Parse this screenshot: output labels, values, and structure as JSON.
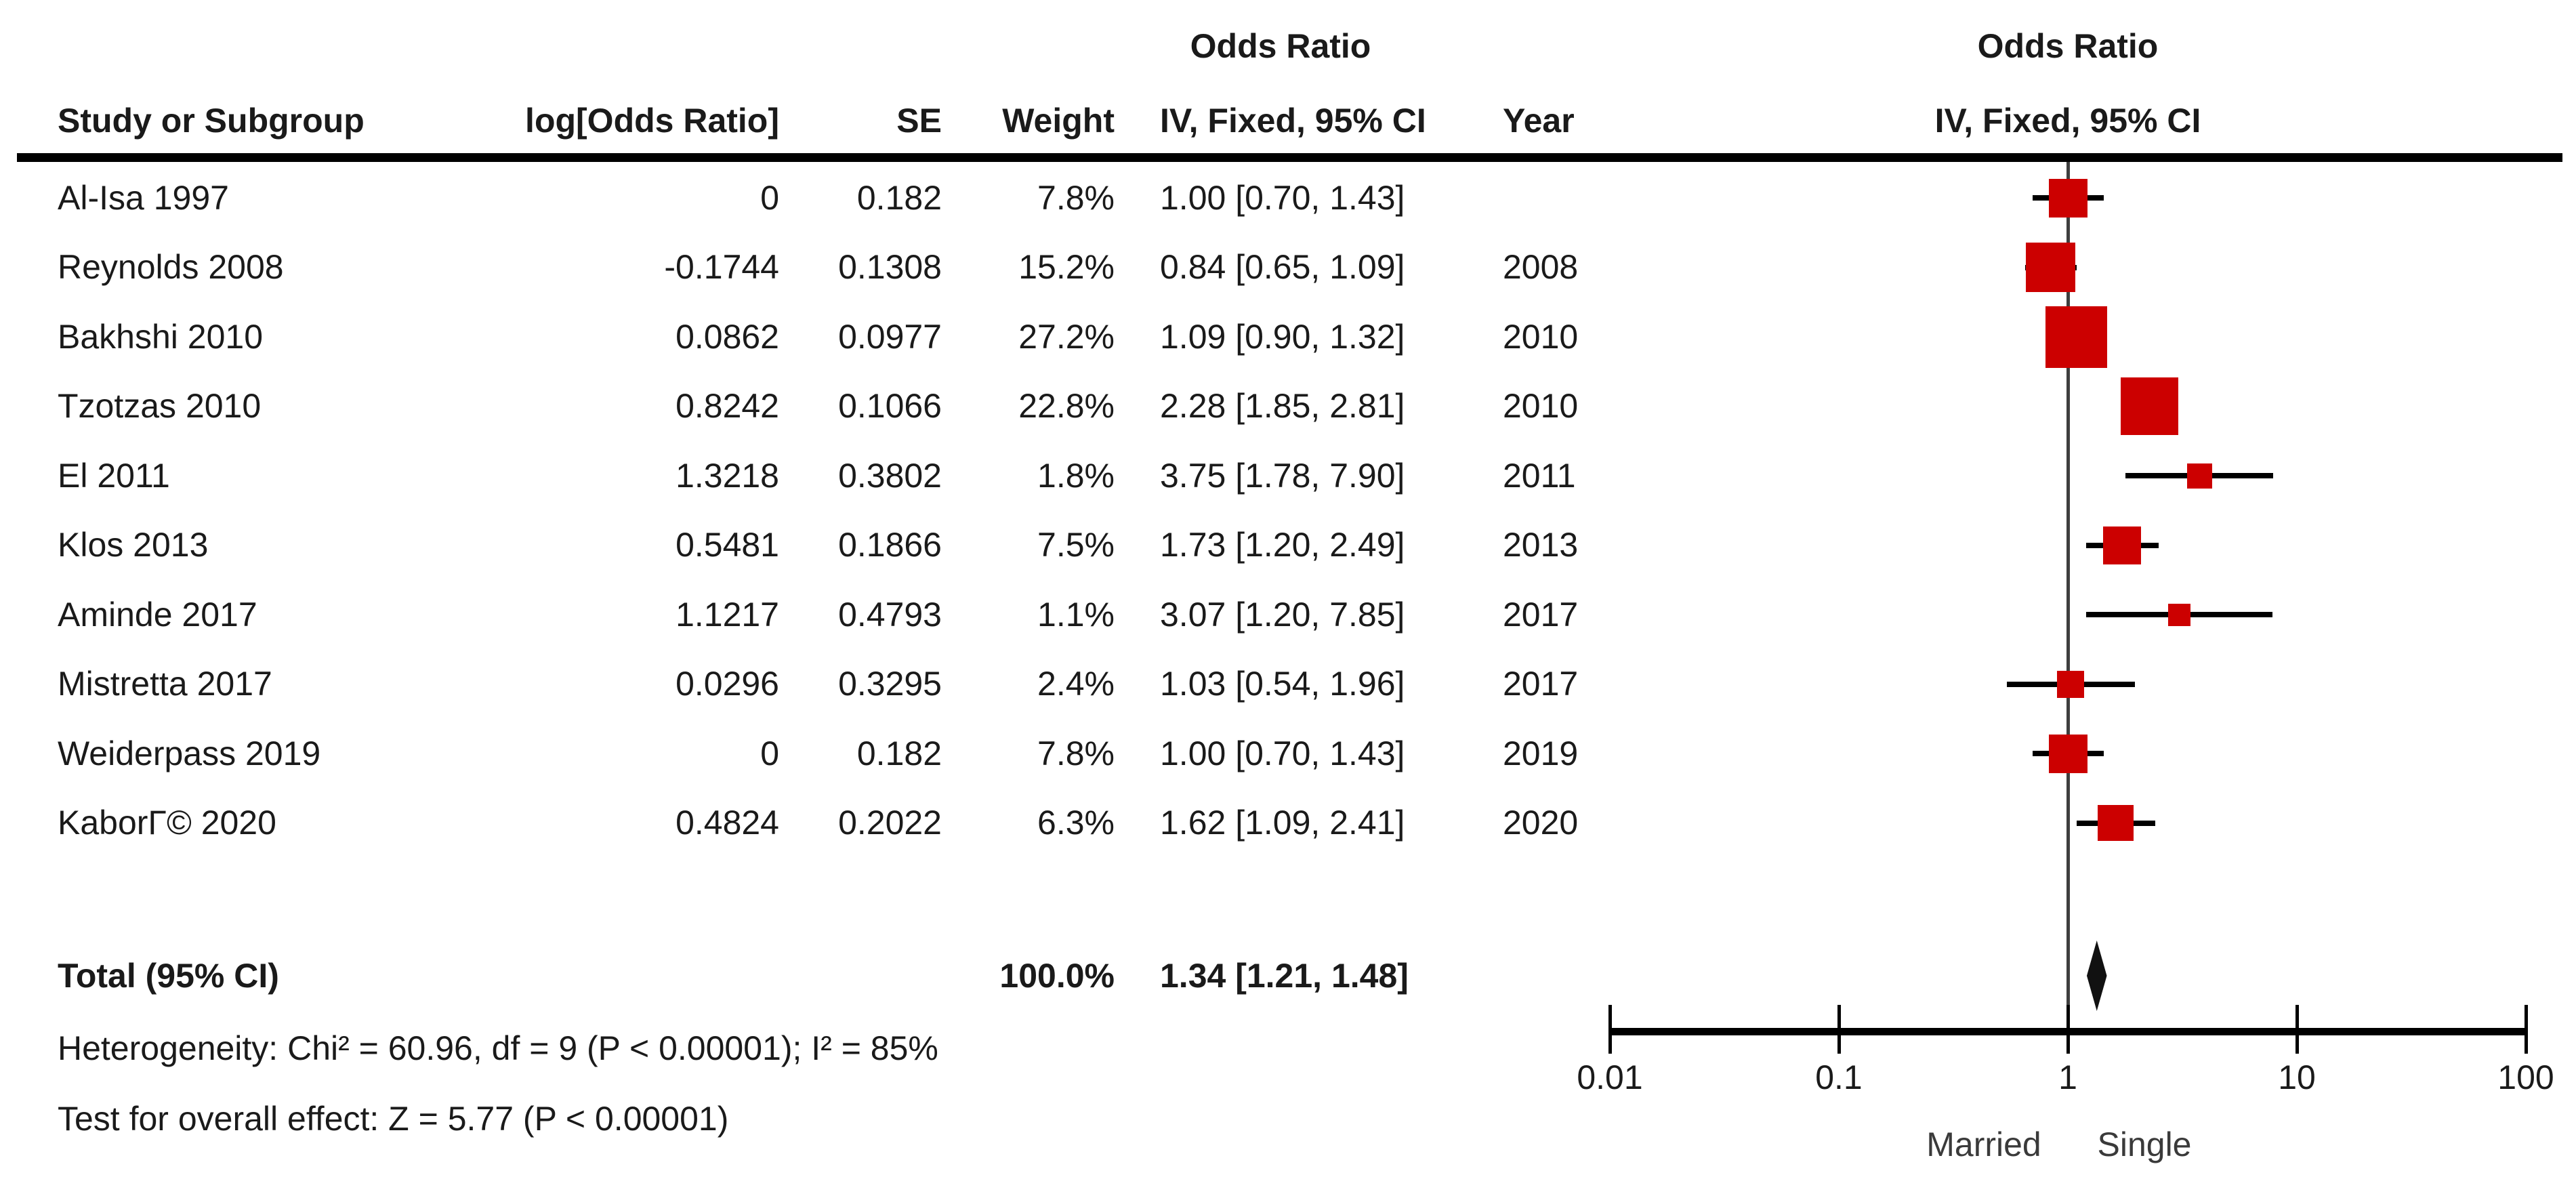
{
  "table": {
    "or_header": "Odds Ratio",
    "headers": {
      "study": "Study or Subgroup",
      "log_or": "log[Odds Ratio]",
      "se": "SE",
      "weight": "Weight",
      "ci": "IV, Fixed, 95% CI",
      "year": "Year"
    }
  },
  "plot": {
    "or_header": "Odds Ratio",
    "model_header": "IV, Fixed, 95% CI"
  },
  "chart_data": {
    "type": "forest",
    "effect_measure": "Odds Ratio",
    "model": "IV, Fixed, 95% CI",
    "x_axis": {
      "scale": "log",
      "min": 0.01,
      "max": 100,
      "ticks": [
        {
          "value": 0.01,
          "label": "0.01"
        },
        {
          "value": 0.1,
          "label": "0.1"
        },
        {
          "value": 1,
          "label": "1"
        },
        {
          "value": 10,
          "label": "10"
        },
        {
          "value": 100,
          "label": "100"
        }
      ],
      "left_label": "Married",
      "right_label": "Single"
    },
    "studies": [
      {
        "name": "Al-Isa 1997",
        "log_or": "0",
        "se": "0.182",
        "weight": "7.8%",
        "weight_pct": 7.8,
        "ci_text": "1.00 [0.70, 1.43]",
        "year": "",
        "or": 1.0,
        "ci_low": 0.7,
        "ci_high": 1.43
      },
      {
        "name": "Reynolds 2008",
        "log_or": "-0.1744",
        "se": "0.1308",
        "weight": "15.2%",
        "weight_pct": 15.2,
        "ci_text": "0.84 [0.65, 1.09]",
        "year": "2008",
        "or": 0.84,
        "ci_low": 0.65,
        "ci_high": 1.09
      },
      {
        "name": "Bakhshi 2010",
        "log_or": "0.0862",
        "se": "0.0977",
        "weight": "27.2%",
        "weight_pct": 27.2,
        "ci_text": "1.09 [0.90, 1.32]",
        "year": "2010",
        "or": 1.09,
        "ci_low": 0.9,
        "ci_high": 1.32
      },
      {
        "name": "Tzotzas 2010",
        "log_or": "0.8242",
        "se": "0.1066",
        "weight": "22.8%",
        "weight_pct": 22.8,
        "ci_text": "2.28 [1.85, 2.81]",
        "year": "2010",
        "or": 2.28,
        "ci_low": 1.85,
        "ci_high": 2.81
      },
      {
        "name": "El 2011",
        "log_or": "1.3218",
        "se": "0.3802",
        "weight": "1.8%",
        "weight_pct": 1.8,
        "ci_text": "3.75 [1.78, 7.90]",
        "year": "2011",
        "or": 3.75,
        "ci_low": 1.78,
        "ci_high": 7.9
      },
      {
        "name": "Klos 2013",
        "log_or": "0.5481",
        "se": "0.1866",
        "weight": "7.5%",
        "weight_pct": 7.5,
        "ci_text": "1.73 [1.20, 2.49]",
        "year": "2013",
        "or": 1.73,
        "ci_low": 1.2,
        "ci_high": 2.49
      },
      {
        "name": "Aminde 2017",
        "log_or": "1.1217",
        "se": "0.4793",
        "weight": "1.1%",
        "weight_pct": 1.1,
        "ci_text": "3.07 [1.20, 7.85]",
        "year": "2017",
        "or": 3.07,
        "ci_low": 1.2,
        "ci_high": 7.85
      },
      {
        "name": "Mistretta 2017",
        "log_or": "0.0296",
        "se": "0.3295",
        "weight": "2.4%",
        "weight_pct": 2.4,
        "ci_text": "1.03 [0.54, 1.96]",
        "year": "2017",
        "or": 1.03,
        "ci_low": 0.54,
        "ci_high": 1.96
      },
      {
        "name": "Weiderpass 2019",
        "log_or": "0",
        "se": "0.182",
        "weight": "7.8%",
        "weight_pct": 7.8,
        "ci_text": "1.00 [0.70, 1.43]",
        "year": "2019",
        "or": 1.0,
        "ci_low": 0.7,
        "ci_high": 1.43
      },
      {
        "name": "KaborΓ© 2020",
        "log_or": "0.4824",
        "se": "0.2022",
        "weight": "6.3%",
        "weight_pct": 6.3,
        "ci_text": "1.62 [1.09, 2.41]",
        "year": "2020",
        "or": 1.62,
        "ci_low": 1.09,
        "ci_high": 2.41
      }
    ],
    "total": {
      "label": "Total (95% CI)",
      "weight": "100.0%",
      "ci_text": "1.34 [1.21, 1.48]",
      "or": 1.34,
      "ci_low": 1.21,
      "ci_high": 1.48
    },
    "footnotes": {
      "heterogeneity": "Heterogeneity: Chi² = 60.96, df = 9 (P < 0.00001); I² = 85%",
      "overall_effect": "Test for overall effect: Z = 5.77 (P < 0.00001)"
    },
    "colors": {
      "marker": "#cc0000",
      "ci_line": "#000000",
      "diamond": "#111111",
      "center_line": "#3f3f3f",
      "axis": "#000000"
    }
  }
}
